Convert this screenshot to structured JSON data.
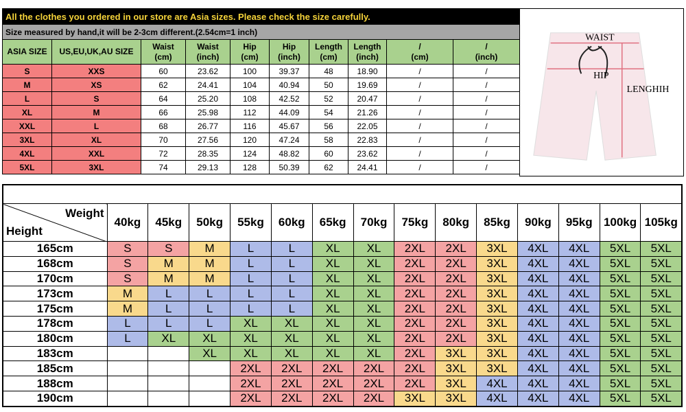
{
  "notice": {
    "title": "All the clothes you ordered in our store are Asia sizes. Please check the size carefully.",
    "subtitle": "Size measured by hand,it will be 2-3cm different.(2.54cm=1 inch)"
  },
  "size_table": {
    "headers": [
      [
        "ASIA SIZE"
      ],
      [
        "US,EU,UK,AU SIZE"
      ],
      [
        "Waist",
        "(cm)"
      ],
      [
        "Waist",
        "(inch)"
      ],
      [
        "Hip",
        "(cm)"
      ],
      [
        "Hip",
        "(inch)"
      ],
      [
        "Length",
        "(cm)"
      ],
      [
        "Length",
        "(inch)"
      ],
      [
        "/",
        "(cm)"
      ],
      [
        "/",
        "(inch)"
      ]
    ],
    "rows": [
      [
        "S",
        "XXS",
        "60",
        "23.62",
        "100",
        "39.37",
        "48",
        "18.90",
        "/",
        "/"
      ],
      [
        "M",
        "XS",
        "62",
        "24.41",
        "104",
        "40.94",
        "50",
        "19.69",
        "/",
        "/"
      ],
      [
        "L",
        "S",
        "64",
        "25.20",
        "108",
        "42.52",
        "52",
        "20.47",
        "/",
        "/"
      ],
      [
        "XL",
        "M",
        "66",
        "25.98",
        "112",
        "44.09",
        "54",
        "21.26",
        "/",
        "/"
      ],
      [
        "XXL",
        "L",
        "68",
        "26.77",
        "116",
        "45.67",
        "56",
        "22.05",
        "/",
        "/"
      ],
      [
        "3XL",
        "XL",
        "70",
        "27.56",
        "120",
        "47.24",
        "58",
        "22.83",
        "/",
        "/"
      ],
      [
        "4XL",
        "XXL",
        "72",
        "28.35",
        "124",
        "48.82",
        "60",
        "23.62",
        "/",
        "/"
      ],
      [
        "5XL",
        "3XL",
        "74",
        "29.13",
        "128",
        "50.39",
        "62",
        "24.41",
        "/",
        "/"
      ]
    ]
  },
  "diagram": {
    "labels": [
      "WAIST",
      "HIP",
      "LENGHIH"
    ]
  },
  "chart_table": {
    "corner": {
      "weight": "Weight",
      "height": "Height"
    },
    "weights": [
      "40kg",
      "45kg",
      "50kg",
      "55kg",
      "60kg",
      "65kg",
      "70kg",
      "75kg",
      "80kg",
      "85kg",
      "90kg",
      "95kg",
      "100kg",
      "105kg"
    ],
    "rows": [
      {
        "height": "165cm",
        "sizes": [
          "S",
          "S",
          "M",
          "L",
          "L",
          "XL",
          "XL",
          "2XL",
          "2XL",
          "3XL",
          "4XL",
          "4XL",
          "5XL",
          "5XL"
        ]
      },
      {
        "height": "168cm",
        "sizes": [
          "S",
          "M",
          "M",
          "L",
          "L",
          "XL",
          "XL",
          "2XL",
          "2XL",
          "3XL",
          "4XL",
          "4XL",
          "5XL",
          "5XL"
        ]
      },
      {
        "height": "170cm",
        "sizes": [
          "S",
          "M",
          "M",
          "L",
          "L",
          "XL",
          "XL",
          "2XL",
          "2XL",
          "3XL",
          "4XL",
          "4XL",
          "5XL",
          "5XL"
        ]
      },
      {
        "height": "173cm",
        "sizes": [
          "M",
          "L",
          "L",
          "L",
          "L",
          "XL",
          "XL",
          "2XL",
          "2XL",
          "3XL",
          "4XL",
          "4XL",
          "5XL",
          "5XL"
        ]
      },
      {
        "height": "175cm",
        "sizes": [
          "M",
          "L",
          "L",
          "L",
          "L",
          "XL",
          "XL",
          "2XL",
          "2XL",
          "3XL",
          "4XL",
          "4XL",
          "5XL",
          "5XL"
        ]
      },
      {
        "height": "178cm",
        "sizes": [
          "L",
          "L",
          "L",
          "XL",
          "XL",
          "XL",
          "XL",
          "2XL",
          "2XL",
          "3XL",
          "4XL",
          "4XL",
          "5XL",
          "5XL"
        ]
      },
      {
        "height": "180cm",
        "sizes": [
          "L",
          "XL",
          "XL",
          "XL",
          "XL",
          "XL",
          "XL",
          "2XL",
          "2XL",
          "3XL",
          "4XL",
          "4XL",
          "5XL",
          "5XL"
        ]
      },
      {
        "height": "183cm",
        "sizes": [
          null,
          null,
          "XL",
          "XL",
          "XL",
          "XL",
          "XL",
          "2XL",
          "3XL",
          "3XL",
          "4XL",
          "4XL",
          "5XL",
          "5XL"
        ]
      },
      {
        "height": "185cm",
        "sizes": [
          null,
          null,
          null,
          "2XL",
          "2XL",
          "2XL",
          "2XL",
          "2XL",
          "3XL",
          "3XL",
          "4XL",
          "4XL",
          "5XL",
          "5XL"
        ]
      },
      {
        "height": "188cm",
        "sizes": [
          null,
          null,
          null,
          "2XL",
          "2XL",
          "2XL",
          "2XL",
          "2XL",
          "3XL",
          "4XL",
          "4XL",
          "4XL",
          "5XL",
          "5XL"
        ]
      },
      {
        "height": "190cm",
        "sizes": [
          null,
          null,
          null,
          "2XL",
          "2XL",
          "2XL",
          "2XL",
          "3XL",
          "3XL",
          "4XL",
          "4XL",
          "4XL",
          "5XL",
          "5XL"
        ]
      }
    ]
  },
  "size_colors": {
    "S": "#f4a3a3",
    "2XL": "#f4a3a3",
    "M": "#f9d98c",
    "3XL": "#f9d98c",
    "L": "#aebbe8",
    "4XL": "#aebbe8",
    "XL": "#a9d18e",
    "5XL": "#a9d18e"
  }
}
